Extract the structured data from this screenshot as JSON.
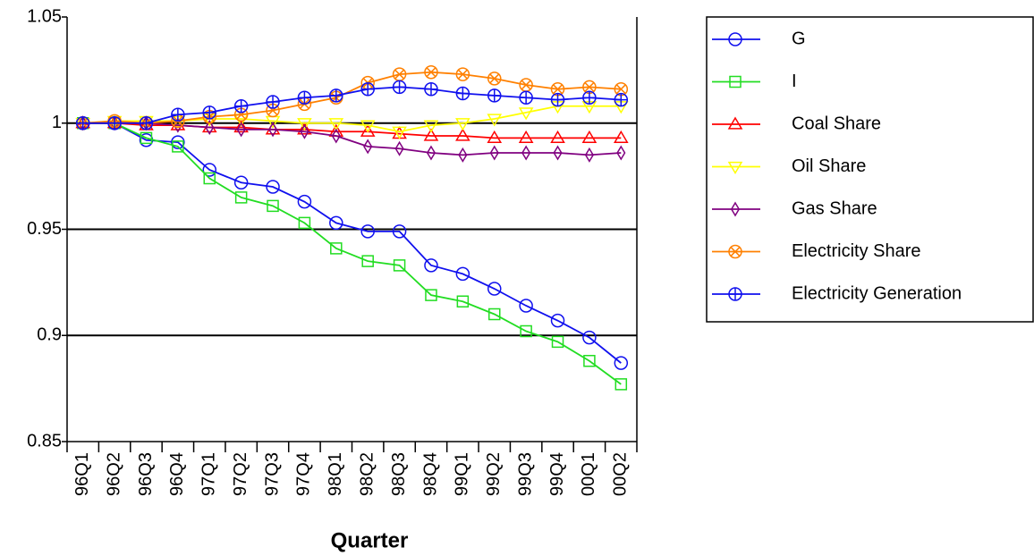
{
  "chart_data": {
    "type": "line",
    "x_label": "Quarter",
    "categories": [
      "96Q1",
      "96Q2",
      "96Q3",
      "96Q4",
      "97Q1",
      "97Q2",
      "97Q3",
      "97Q4",
      "98Q1",
      "98Q2",
      "98Q3",
      "98Q4",
      "99Q1",
      "99Q2",
      "99Q3",
      "99Q4",
      "00Q1",
      "00Q2"
    ],
    "ylim": [
      0.85,
      1.05
    ],
    "yticks": [
      0.85,
      0.9,
      0.95,
      1,
      1.05
    ],
    "grid": true,
    "legend": "right",
    "series": [
      {
        "name": "G",
        "color": "#1010ee",
        "marker": "circle",
        "values": [
          1.0,
          1.0,
          0.992,
          0.991,
          0.978,
          0.972,
          0.97,
          0.963,
          0.953,
          0.949,
          0.949,
          0.933,
          0.929,
          0.922,
          0.914,
          0.907,
          0.899,
          0.887
        ]
      },
      {
        "name": "I",
        "color": "#22dd22",
        "marker": "square",
        "values": [
          1.0,
          1.0,
          0.993,
          0.989,
          0.974,
          0.965,
          0.961,
          0.953,
          0.941,
          0.935,
          0.933,
          0.919,
          0.916,
          0.91,
          0.902,
          0.897,
          0.888,
          0.877
        ]
      },
      {
        "name": "Coal Share",
        "color": "#ff0000",
        "marker": "triangle-up",
        "values": [
          1.0,
          1.0,
          0.999,
          0.999,
          0.998,
          0.998,
          0.997,
          0.997,
          0.996,
          0.996,
          0.995,
          0.994,
          0.994,
          0.993,
          0.993,
          0.993,
          0.993,
          0.993
        ]
      },
      {
        "name": "Oil Share",
        "color": "#ffff00",
        "marker": "triangle-down",
        "values": [
          1.0,
          1.001,
          1.001,
          1.001,
          1.002,
          1.002,
          1.001,
          1.0,
          1.0,
          0.999,
          0.996,
          0.999,
          1.0,
          1.002,
          1.005,
          1.008,
          1.008,
          1.008
        ]
      },
      {
        "name": "Gas Share",
        "color": "#800080",
        "marker": "diamond",
        "values": [
          1.0,
          1.0,
          1.0,
          0.999,
          0.998,
          0.997,
          0.997,
          0.996,
          0.994,
          0.989,
          0.988,
          0.986,
          0.985,
          0.986,
          0.986,
          0.986,
          0.985,
          0.986
        ]
      },
      {
        "name": "Electricity Share",
        "color": "#ff8000",
        "marker": "circle-x",
        "values": [
          1.0,
          1.001,
          1.0,
          1.001,
          1.003,
          1.004,
          1.006,
          1.009,
          1.012,
          1.019,
          1.023,
          1.024,
          1.023,
          1.021,
          1.018,
          1.016,
          1.017,
          1.016
        ]
      },
      {
        "name": "Electricity Generation",
        "color": "#1010ee",
        "marker": "circle-plus",
        "values": [
          1.0,
          1.0,
          1.0,
          1.004,
          1.005,
          1.008,
          1.01,
          1.012,
          1.013,
          1.016,
          1.017,
          1.016,
          1.014,
          1.013,
          1.012,
          1.011,
          1.012,
          1.011
        ]
      }
    ]
  }
}
